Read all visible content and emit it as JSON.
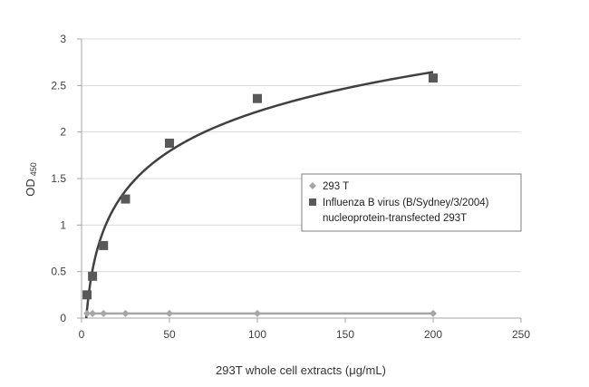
{
  "chart_data": {
    "type": "scatter",
    "title": "",
    "xlabel": "293T whole cell extracts (μg/mL)",
    "ylabel": "OD",
    "ylabel_subscript": "450",
    "xlim": [
      0,
      250
    ],
    "ylim": [
      0,
      3
    ],
    "x_ticks": [
      0,
      50,
      100,
      150,
      200,
      250
    ],
    "y_ticks": [
      0,
      0.5,
      1,
      1.5,
      2,
      2.5,
      3
    ],
    "x_tick_labels": [
      "0",
      "50",
      "100",
      "150",
      "200",
      "250"
    ],
    "y_tick_labels": [
      "0",
      "0.5",
      "1",
      "1.5",
      "2",
      "2.5",
      "3"
    ],
    "grid": "horizontal",
    "legend_position": "right",
    "series": [
      {
        "name": "293 T",
        "marker": "diamond",
        "color": "#a6a6a6",
        "x": [
          3.125,
          6.25,
          12.5,
          25,
          50,
          100,
          200
        ],
        "y": [
          0.05,
          0.05,
          0.05,
          0.05,
          0.05,
          0.05,
          0.05
        ],
        "trendline": "linear"
      },
      {
        "name": "Influenza B virus (B/Sydney/3/2004)",
        "name_line2": "nucleoprotein-transfected 293T",
        "marker": "square",
        "color": "#595959",
        "x": [
          3.125,
          6.25,
          12.5,
          25,
          50,
          100,
          200
        ],
        "y": [
          0.25,
          0.45,
          0.78,
          1.28,
          1.88,
          2.36,
          2.58
        ],
        "trendline": "logarithmic"
      }
    ]
  }
}
